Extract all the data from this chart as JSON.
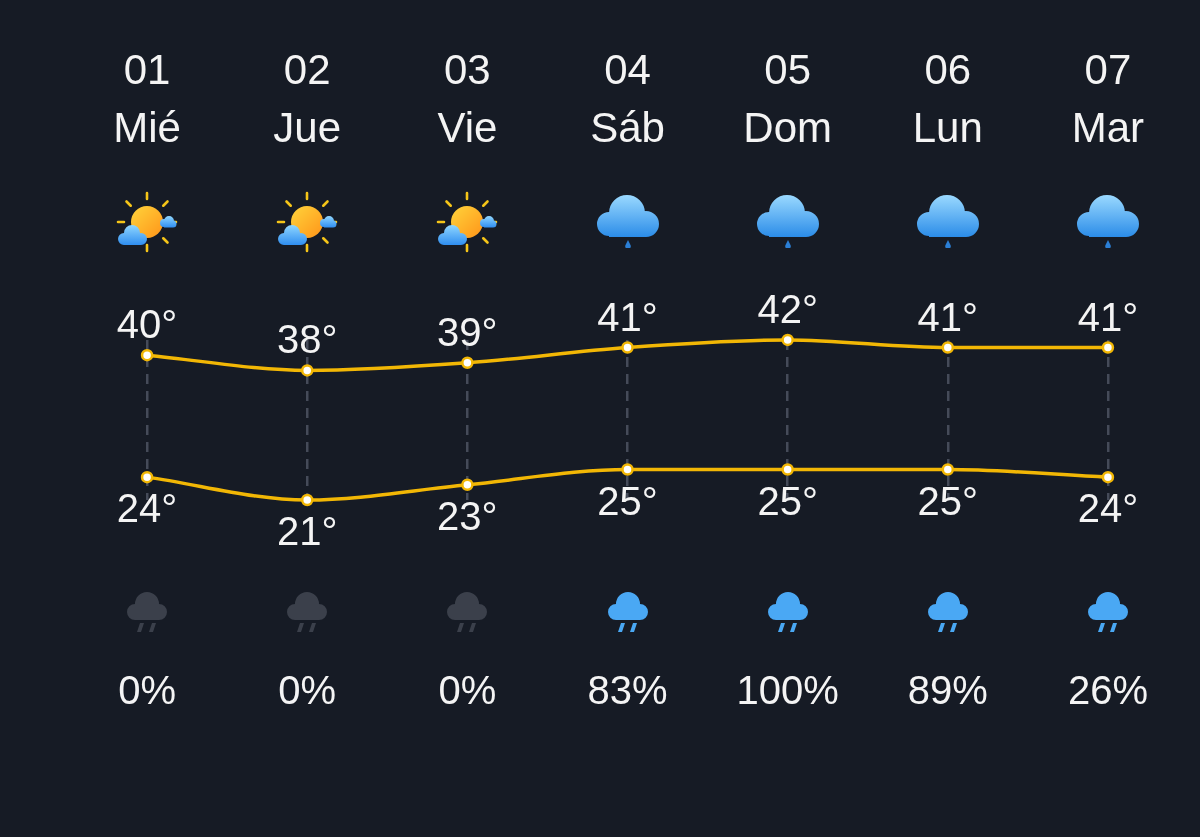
{
  "chart_data": [
    {
      "type": "line",
      "categories": [
        "01 Mié",
        "02 Jue",
        "03 Vie",
        "04 Sáb",
        "05 Dom",
        "06 Lun",
        "07 Mar"
      ],
      "series": [
        {
          "color": "#f2b705",
          "values": [
            40,
            38,
            39,
            41,
            42,
            41,
            41
          ],
          "value_labels": [
            "40°",
            "38°",
            "39°",
            "41°",
            "42°",
            "41°",
            "41°"
          ]
        },
        {
          "color": "#f2b705",
          "values": [
            24,
            21,
            23,
            25,
            25,
            25,
            24
          ],
          "value_labels": [
            "24°",
            "21°",
            "23°",
            "25°",
            "25°",
            "25°",
            "24°"
          ]
        }
      ],
      "marker": "circle",
      "grid": "x"
    },
    {
      "type": "other",
      "values": [
        0,
        0,
        0,
        83,
        100,
        89,
        26
      ],
      "value_labels": [
        "0%",
        "0%",
        "0%",
        "83%",
        "100%",
        "89%",
        "26%"
      ],
      "colors": [
        "#3b404b",
        "#3b404b",
        "#3b404b",
        "#4aa8f4",
        "#4aa8f4",
        "#4aa8f4",
        "#4aa8f4"
      ]
    }
  ]
}
